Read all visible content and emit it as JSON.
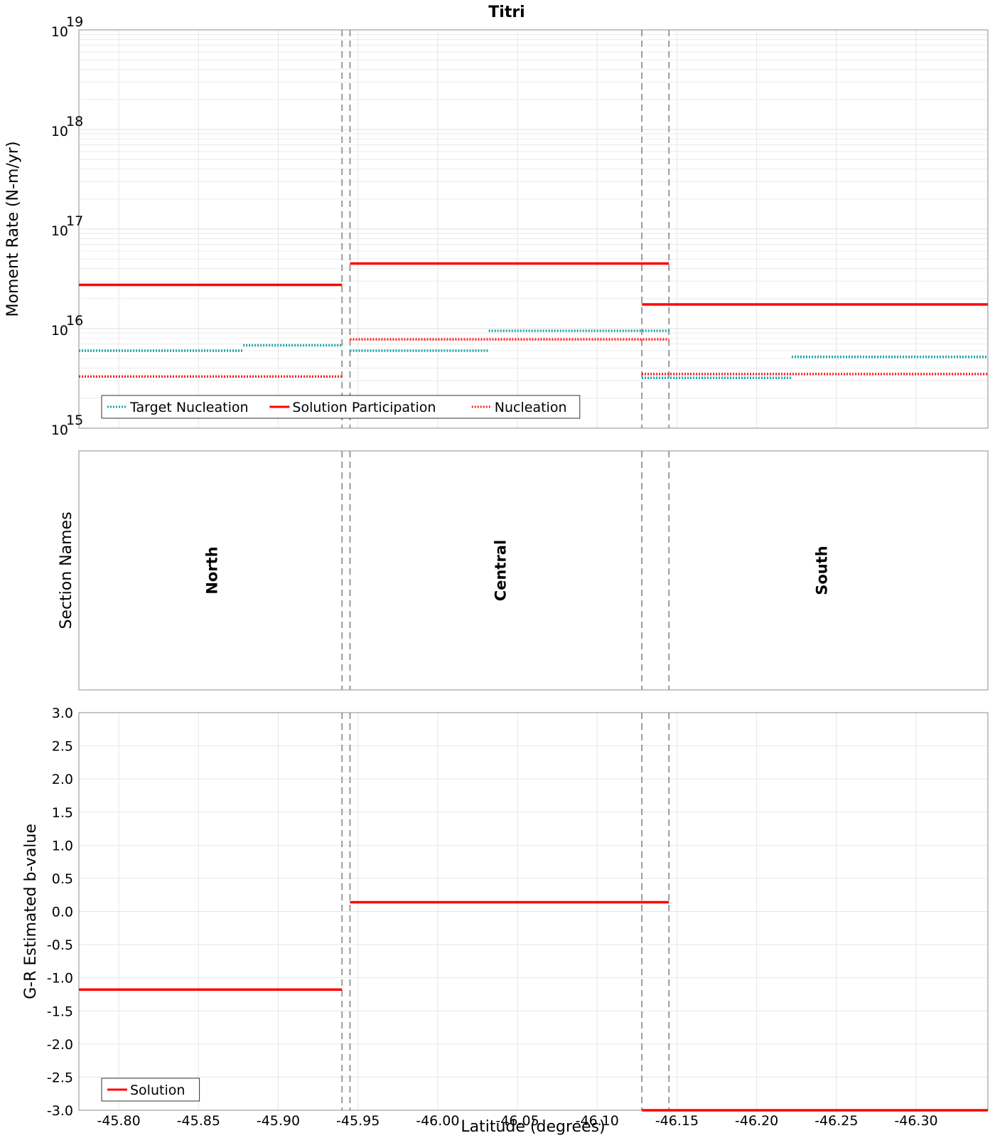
{
  "title": "Titri",
  "colors": {
    "solution": "#ff0000",
    "target": "#1aa8a8",
    "nucleation": "#ff2020",
    "boundary": "#9a9a9a"
  },
  "chart_data": [
    {
      "type": "line",
      "panel": "moment-rate",
      "title": "Titri",
      "xlabel": "",
      "ylabel": "Moment Rate (N-m/yr)",
      "xlim": [
        -45.775,
        -46.345
      ],
      "ylim": [
        1000000000000000.0,
        1e+19
      ],
      "yscale": "log",
      "xticks": [
        "-45.80",
        "-45.85",
        "-45.90",
        "-45.95",
        "-46.00",
        "-46.05",
        "-46.10",
        "-46.15",
        "-46.20",
        "-46.25",
        "-46.30"
      ],
      "yticks": [
        {
          "value": 1000000000000000.0,
          "base": "10",
          "exp": "15"
        },
        {
          "value": 1e+16,
          "base": "10",
          "exp": "16"
        },
        {
          "value": 1e+17,
          "base": "10",
          "exp": "17"
        },
        {
          "value": 1e+18,
          "base": "10",
          "exp": "18"
        },
        {
          "value": 1e+19,
          "base": "10",
          "exp": "19"
        }
      ],
      "grid": true,
      "legend_position": "bottom-left",
      "series": [
        {
          "name": "Target Nucleation",
          "style": "dotted",
          "color": "#1aa8a8",
          "segments": [
            {
              "x0": -45.775,
              "x1": -45.878,
              "y": 6000000000000000.0
            },
            {
              "x0": -45.878,
              "x1": -45.94,
              "y": 6800000000000000.0
            },
            {
              "x0": -45.945,
              "x1": -46.032,
              "y": 6000000000000000.0
            },
            {
              "x0": -46.032,
              "x1": -46.145,
              "y": 9500000000000000.0
            },
            {
              "x0": -46.128,
              "x1": -46.222,
              "y": 3200000000000000.0
            },
            {
              "x0": -46.222,
              "x1": -46.345,
              "y": 5200000000000000.0
            }
          ]
        },
        {
          "name": "Solution Participation",
          "style": "solid",
          "color": "#ff0000",
          "segments": [
            {
              "x0": -45.775,
              "x1": -45.94,
              "y": 2.75e+16
            },
            {
              "x0": -45.945,
              "x1": -46.145,
              "y": 4.5e+16
            },
            {
              "x0": -46.128,
              "x1": -46.345,
              "y": 1.75e+16
            }
          ]
        },
        {
          "name": "Nucleation",
          "style": "dotted",
          "color": "#ff2020",
          "segments": [
            {
              "x0": -45.775,
              "x1": -45.94,
              "y": 3300000000000000.0
            },
            {
              "x0": -45.945,
              "x1": -46.145,
              "y": 7800000000000000.0
            },
            {
              "x0": -46.128,
              "x1": -46.345,
              "y": 3500000000000000.0
            }
          ]
        }
      ]
    },
    {
      "type": "table",
      "panel": "section-names",
      "ylabel": "Section Names",
      "sections": [
        {
          "name": "North",
          "x0": -45.775,
          "x1": -45.942
        },
        {
          "name": "Central",
          "x0": -45.942,
          "x1": -46.137
        },
        {
          "name": "South",
          "x0": -46.137,
          "x1": -46.345
        }
      ],
      "boundaries": [
        -45.94,
        -45.945,
        -46.128,
        -46.145
      ]
    },
    {
      "type": "line",
      "panel": "b-value",
      "xlabel": "Latitude (degrees)",
      "ylabel": "G-R Estimated b-value",
      "xlim": [
        -45.775,
        -46.345
      ],
      "ylim": [
        -3.0,
        3.0
      ],
      "xticks": [
        "-45.80",
        "-45.85",
        "-45.90",
        "-45.95",
        "-46.00",
        "-46.05",
        "-46.10",
        "-46.15",
        "-46.20",
        "-46.25",
        "-46.30"
      ],
      "yticks": [
        "3.0",
        "2.5",
        "2.0",
        "1.5",
        "1.0",
        "0.5",
        "0.0",
        "-0.5",
        "-1.0",
        "-1.5",
        "-2.0",
        "-2.5",
        "-3.0"
      ],
      "grid": true,
      "legend_position": "bottom-left",
      "series": [
        {
          "name": "Solution",
          "style": "solid",
          "color": "#ff0000",
          "segments": [
            {
              "x0": -45.775,
              "x1": -45.94,
              "y": -1.18
            },
            {
              "x0": -45.945,
              "x1": -46.145,
              "y": 0.14
            },
            {
              "x0": -46.128,
              "x1": -46.345,
              "y": -3.0
            }
          ]
        }
      ]
    }
  ]
}
